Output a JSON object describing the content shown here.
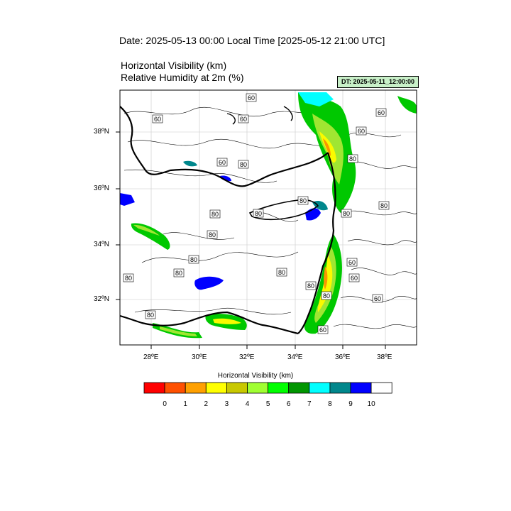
{
  "header": {
    "date_line": "Date: 2025-05-13  00:00 Local Time [2025-05-12  21:00 UTC]",
    "variable_1": "Horizontal Visibility   (km)",
    "variable_2": "Relative Humidity at 2m   (%)",
    "dt_stamp": "DT: 2025-05-11_12:00:00"
  },
  "map": {
    "region": "Eastern Mediterranean",
    "lon_ticks": [
      "28ºE",
      "30ºE",
      "32ºE",
      "34ºE",
      "36ºE",
      "38ºE"
    ],
    "lat_ticks": [
      "38ºN",
      "36ºN",
      "34ºN",
      "32ºN"
    ],
    "contour_labels": [
      "60",
      "60",
      "60",
      "60",
      "60",
      "60",
      "80",
      "80",
      "80",
      "80",
      "80",
      "80",
      "80",
      "80",
      "80",
      "80",
      "80",
      "80",
      "80",
      "80",
      "80",
      "60",
      "60",
      "60",
      "60"
    ],
    "fill_colors": {
      "low_vis_green": "#00c800",
      "mid_green": "#a0e632",
      "yellow": "#fafa00",
      "orange": "#fa9600",
      "cyan": "#00ffff",
      "teal": "#00878c",
      "blue": "#0000ff"
    }
  },
  "colorbar": {
    "title": "Horizontal Visibility  (km)",
    "colors": [
      "#ff0000",
      "#ff5000",
      "#ffa000",
      "#ffff00",
      "#c8c800",
      "#a0ff32",
      "#00ff00",
      "#009600",
      "#00ffff",
      "#00878c",
      "#0000ff",
      "#ffffff"
    ],
    "labels": [
      "0",
      "1",
      "2",
      "3",
      "4",
      "5",
      "6",
      "7",
      "8",
      "9",
      "10"
    ]
  }
}
